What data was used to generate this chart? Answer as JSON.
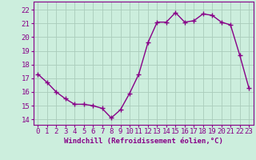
{
  "x": [
    0,
    1,
    2,
    3,
    4,
    5,
    6,
    7,
    8,
    9,
    10,
    11,
    12,
    13,
    14,
    15,
    16,
    17,
    18,
    19,
    20,
    21,
    22,
    23
  ],
  "y": [
    17.3,
    16.7,
    16.0,
    15.5,
    15.1,
    15.1,
    15.0,
    14.8,
    14.1,
    14.7,
    15.9,
    17.3,
    19.6,
    21.1,
    21.1,
    21.8,
    21.1,
    21.2,
    21.7,
    21.6,
    21.1,
    20.9,
    18.7,
    16.3
  ],
  "line_color": "#880088",
  "marker": "+",
  "marker_size": 4,
  "marker_lw": 1.0,
  "bg_color": "#cceedd",
  "grid_color": "#aaccbb",
  "xlabel": "Windchill (Refroidissement éolien,°C)",
  "ylabel_ticks": [
    14,
    15,
    16,
    17,
    18,
    19,
    20,
    21,
    22
  ],
  "xlim": [
    -0.5,
    23.5
  ],
  "ylim": [
    13.6,
    22.6
  ],
  "tick_color": "#880088",
  "font_size": 6.5,
  "xlabel_fontsize": 6.5,
  "lw": 1.0
}
